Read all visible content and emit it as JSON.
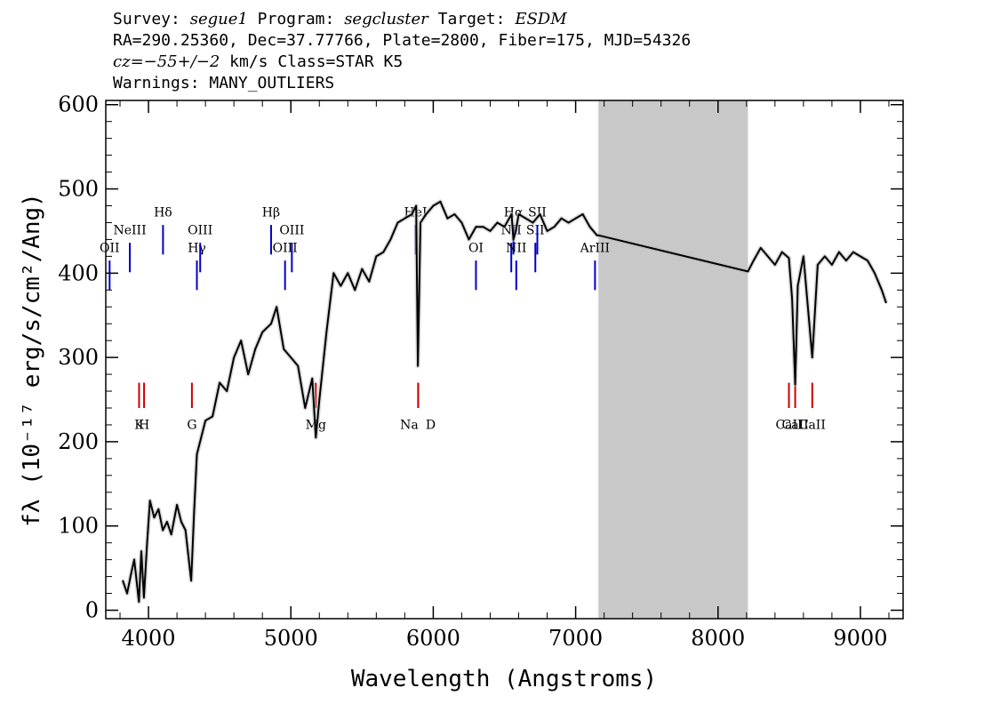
{
  "header": {
    "line1": {
      "k1": "Survey: ",
      "survey": "segue1",
      "k2": " Program: ",
      "program": "segcluster",
      "k3": " Target: ",
      "target": "ESDM"
    },
    "line2": "RA=290.25360, Dec=37.77766, Plate=2800, Fiber=175, MJD=54326",
    "line3": {
      "cz": "cz=−55+/−2",
      "rest": " km/s Class=STAR K5"
    },
    "line4": "Warnings: MANY_OUTLIERS"
  },
  "chart_data": {
    "type": "line",
    "xlabel": "Wavelength (Angstroms)",
    "ylabel": "fλ (10⁻¹⁷ erg/s/cm²/Ang)",
    "xlim": [
      3700,
      9300
    ],
    "ylim": [
      -10,
      605
    ],
    "xticks": [
      4000,
      5000,
      6000,
      7000,
      8000,
      9000
    ],
    "yticks": [
      0,
      100,
      200,
      300,
      400,
      500,
      600
    ],
    "grid": false,
    "masked_region": [
      7160,
      8210
    ],
    "colors": {
      "spectrum": "#000000",
      "error": "#bbbbbb",
      "emission": "#0000cc",
      "absorption": "#cc0000",
      "mask": "#c8c8c8"
    },
    "series": [
      {
        "x": [
          3820,
          3850,
          3880,
          3900,
          3920,
          3933,
          3950,
          3968,
          3990,
          4010,
          4040,
          4070,
          4101,
          4130,
          4160,
          4200,
          4230,
          4260,
          4300,
          4320,
          4340,
          4370,
          4400,
          4450,
          4500,
          4550,
          4600,
          4650,
          4700,
          4750,
          4800,
          4861,
          4900,
          4950,
          5000,
          5050,
          5100,
          5150,
          5175,
          5200,
          5250,
          5300,
          5350,
          5400,
          5450,
          5500,
          5550,
          5600,
          5650,
          5700,
          5750,
          5800,
          5850,
          5880,
          5892,
          5910,
          5950,
          6000,
          6050,
          6100,
          6150,
          6200,
          6250,
          6300,
          6350,
          6400,
          6450,
          6500,
          6550,
          6563,
          6580,
          6600,
          6650,
          6700,
          6750,
          6800,
          6850,
          6900,
          6950,
          7000,
          7050,
          7100,
          7150,
          7160,
          8210,
          8250,
          8300,
          8350,
          8400,
          8450,
          8498,
          8520,
          8542,
          8560,
          8600,
          8662,
          8700,
          8750,
          8800,
          8850,
          8900,
          8950,
          9000,
          9050,
          9100,
          9150,
          9180
        ],
        "y": [
          35,
          20,
          45,
          60,
          30,
          10,
          70,
          15,
          80,
          130,
          110,
          120,
          95,
          105,
          90,
          125,
          105,
          95,
          35,
          115,
          185,
          205,
          225,
          230,
          270,
          260,
          300,
          320,
          280,
          310,
          330,
          340,
          360,
          310,
          300,
          290,
          240,
          275,
          205,
          250,
          330,
          400,
          385,
          400,
          380,
          405,
          390,
          420,
          425,
          440,
          460,
          465,
          470,
          480,
          290,
          460,
          470,
          480,
          485,
          465,
          470,
          460,
          440,
          455,
          455,
          450,
          460,
          455,
          470,
          440,
          450,
          470,
          465,
          460,
          470,
          450,
          455,
          465,
          460,
          465,
          470,
          455,
          445,
          445,
          402,
          415,
          430,
          420,
          410,
          425,
          418,
          370,
          268,
          385,
          420,
          300,
          410,
          420,
          410,
          425,
          415,
          425,
          420,
          415,
          400,
          380,
          365
        ]
      }
    ],
    "emission_lines": [
      {
        "label": "OII",
        "x": 3727
      },
      {
        "label": "NeIII",
        "x": 3869
      },
      {
        "label": "Hδ",
        "x": 4102
      },
      {
        "label": "Hγ",
        "x": 4340
      },
      {
        "label": "OIII",
        "x": 4363
      },
      {
        "label": "Hβ",
        "x": 4861
      },
      {
        "label": "OIII",
        "x": 4959
      },
      {
        "label": "OIII",
        "x": 5007
      },
      {
        "label": "HeI",
        "x": 5876
      },
      {
        "label": "OI",
        "x": 6300
      },
      {
        "label": "NII",
        "x": 6548
      },
      {
        "label": "Hα",
        "x": 6563
      },
      {
        "label": "NII",
        "x": 6583
      },
      {
        "label": "SII",
        "x": 6717
      },
      {
        "label": "SII",
        "x": 6731
      },
      {
        "label": "ArIII",
        "x": 7136
      }
    ],
    "absorption_lines": [
      {
        "label": "K",
        "x": 3934
      },
      {
        "label": "H",
        "x": 3969
      },
      {
        "label": "G",
        "x": 4305
      },
      {
        "label": "Mg",
        "x": 5175
      },
      {
        "label": "Na",
        "x": 5894
      },
      {
        "label": "D",
        "x": 5894
      },
      {
        "label": "CaII",
        "x": 8498
      },
      {
        "label": "CaII",
        "x": 8542
      },
      {
        "label": "CaII",
        "x": 8662
      }
    ]
  }
}
